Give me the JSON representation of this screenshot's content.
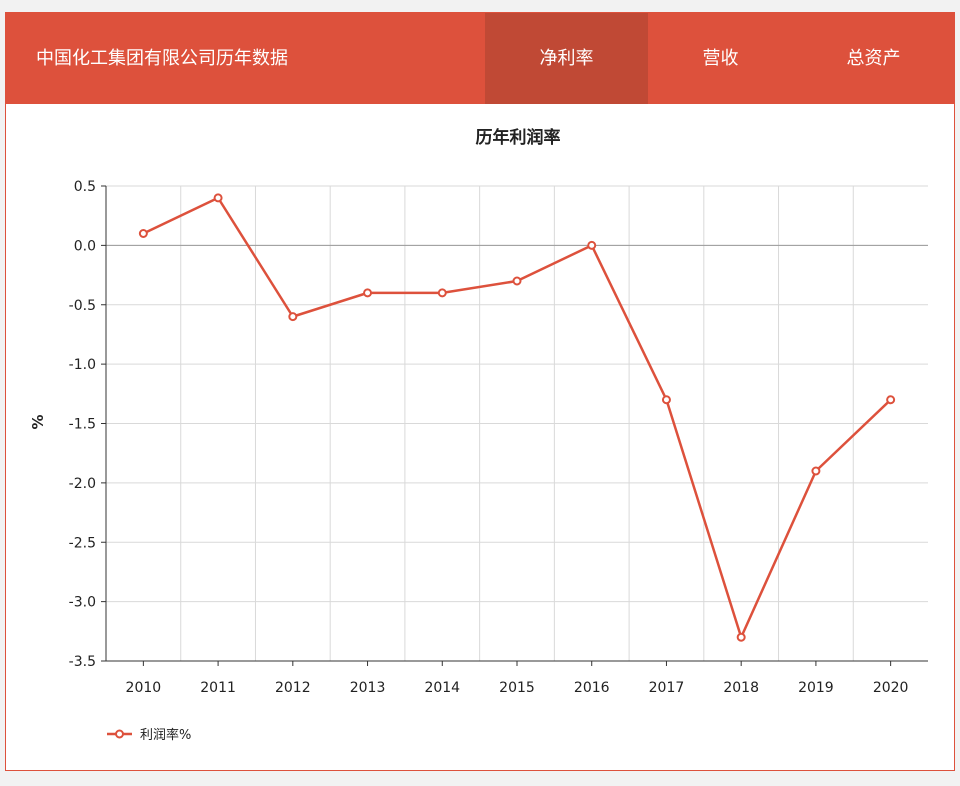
{
  "header": {
    "title": "中国化工集团有限公司历年数据",
    "tabs": [
      {
        "label": "净利率",
        "active": true
      },
      {
        "label": "营收",
        "active": false
      },
      {
        "label": "总资产",
        "active": false
      }
    ],
    "colors": {
      "bar": "#dd513c",
      "active_tab": "#c04935"
    }
  },
  "chart_data": {
    "type": "line",
    "title": "历年利润率",
    "ylabel": "%",
    "xlabel": "",
    "categories": [
      "2010",
      "2011",
      "2012",
      "2013",
      "2014",
      "2015",
      "2016",
      "2017",
      "2018",
      "2019",
      "2020"
    ],
    "series": [
      {
        "name": "利润率%",
        "color": "#dd513c",
        "values": [
          0.1,
          0.4,
          -0.6,
          -0.4,
          -0.4,
          -0.3,
          0.0,
          -1.3,
          -3.3,
          -1.9,
          -1.3
        ]
      }
    ],
    "ylim": [
      -3.5,
      0.5
    ],
    "yticks": [
      "0.5",
      "0.0",
      "-0.5",
      "-1.0",
      "-1.5",
      "-2.0",
      "-2.5",
      "-3.0",
      "-3.5"
    ],
    "grid": true,
    "legend_position": "bottom-left"
  }
}
